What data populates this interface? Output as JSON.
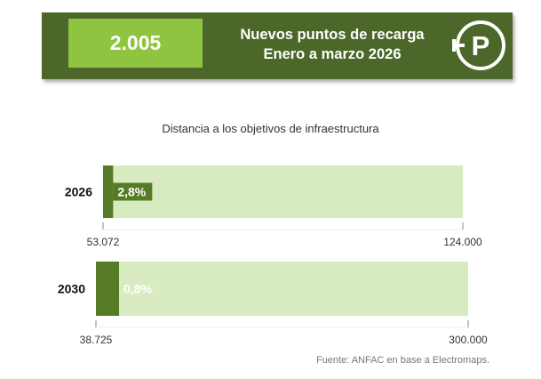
{
  "header": {
    "kpi_value": "2.005",
    "title_line1": "Nuevos puntos de recarga",
    "title_line2": "Enero a marzo 2026",
    "icon": "ev-charging-plug-icon"
  },
  "colors": {
    "banner_bg": "#4c6729",
    "kpi_bg": "#8ec43f",
    "bar_fill": "#567b26",
    "bar_track": "#d7eac0",
    "label_bg": "#d9ebc3",
    "label_text": "#ffffff"
  },
  "chart_data": {
    "type": "bar",
    "orientation": "horizontal",
    "title": "Distancia a los objetivos de infraestructura",
    "categories": [
      "2026",
      "2030"
    ],
    "series": [
      {
        "values": [
          2.8,
          0.8
        ],
        "labels": [
          "2,8%",
          "0,8%"
        ]
      }
    ],
    "start_labels": [
      "53.072",
      "38.725"
    ],
    "end_labels": [
      "124.000",
      "300.000"
    ],
    "xlim": [
      0,
      100
    ],
    "grid": false
  },
  "source": "Fuente: ANFAC en base a Electromaps."
}
